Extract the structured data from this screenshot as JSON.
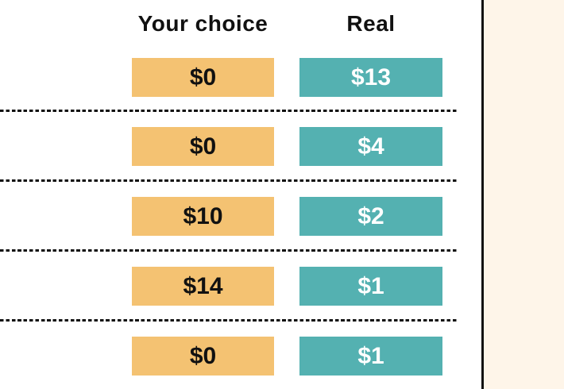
{
  "chart_data": {
    "type": "table",
    "title": "",
    "columns": [
      "Your choice",
      "Real"
    ],
    "rows": [
      {
        "choice": "$0",
        "real": "$13"
      },
      {
        "choice": "$0",
        "real": "$4"
      },
      {
        "choice": "$10",
        "real": "$2"
      },
      {
        "choice": "$14",
        "real": "$1"
      },
      {
        "choice": "$0",
        "real": "$1"
      }
    ],
    "values_numeric": {
      "your_choice": [
        0,
        0,
        10,
        14,
        0
      ],
      "real": [
        13,
        4,
        2,
        1,
        1
      ]
    },
    "layout_hints": {
      "row_separators": "dashed",
      "side_panel": "cream panel on right with black border line"
    }
  },
  "table": {
    "headers": [
      {
        "label": "Your choice"
      },
      {
        "label": "Real"
      }
    ],
    "rows": [
      {
        "choice": "$0",
        "real": "$13"
      },
      {
        "choice": "$0",
        "real": "$4"
      },
      {
        "choice": "$10",
        "real": "$2"
      },
      {
        "choice": "$14",
        "real": "$1"
      },
      {
        "choice": "$0",
        "real": "$1"
      }
    ]
  },
  "colors": {
    "background": "#ffffff",
    "choice_badge": "#f4c272",
    "choice_text": "#111111",
    "real_badge": "#54b1b1",
    "real_text": "#ffffff",
    "divider": "#111111",
    "side_panel_bg": "#fef5e9"
  }
}
